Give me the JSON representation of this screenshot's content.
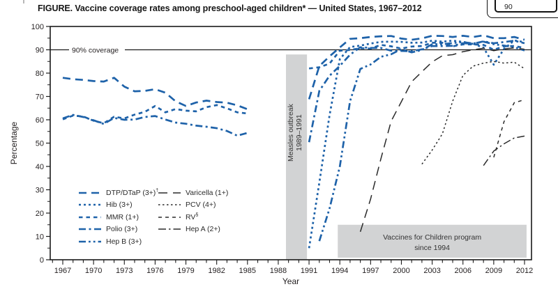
{
  "title": "FIGURE. Vaccine coverage rates among preschool-aged children* — United States, 1967–2012",
  "artifact_badge": {
    "value": "90"
  },
  "colors": {
    "blue": "#1e62a9",
    "black_line": "#2a2a2a",
    "band_gray": "#d2d3d4",
    "axis": "#1a1a1a",
    "text": "#231f20",
    "annotation_text": "#333333"
  },
  "chart_data": {
    "type": "line",
    "title": "Vaccine coverage rates among preschool-aged children — United States, 1967–2012",
    "xlabel": "Year",
    "ylabel": "Percentage",
    "xlim": [
      1966,
      2013
    ],
    "ylim": [
      0,
      100
    ],
    "grid": false,
    "legend_position": "inside-lower-left",
    "x_tick_labels": [
      1967,
      1970,
      1973,
      1976,
      1979,
      1982,
      1985,
      1988,
      1991,
      1994,
      1997,
      2000,
      2003,
      2006,
      2009,
      2012
    ],
    "x_minor_tick_years": [
      1966,
      2012,
      1
    ],
    "y_tick_labels": [
      0,
      10,
      20,
      30,
      40,
      50,
      60,
      70,
      80,
      90,
      100
    ],
    "y_minor_tick_step": 5,
    "reference_line": {
      "y": 90,
      "label": "90% coverage"
    },
    "annotations": [
      {
        "id": "measles-band",
        "type": "vertical-band",
        "label_lines": [
          "Measles outbreak",
          "1989–1991"
        ],
        "x_from": 1988.75,
        "x_to": 1990.8,
        "y_from": 0,
        "y_to": 88
      },
      {
        "id": "vfc-box",
        "type": "box",
        "label_lines": [
          "Vaccines for Children program",
          "since 1994"
        ],
        "x_from": 1993.8,
        "x_to": 2012.2,
        "y_from": 0.9,
        "y_to": 15
      }
    ],
    "series": [
      {
        "id": "dtp",
        "label": "DTP/DTaP (3+)",
        "sup": "†",
        "color_key": "blue",
        "dash": "11 7",
        "width": 2.7,
        "legend_col": 1,
        "segments": [
          [
            [
              1967,
              78
            ],
            [
              1968,
              77.4
            ],
            [
              1969,
              77.1
            ],
            [
              1970,
              76.6
            ],
            [
              1971,
              76.4
            ],
            [
              1972,
              78
            ],
            [
              1973,
              74.2
            ],
            [
              1974,
              72.2
            ],
            [
              1975,
              72.4
            ],
            [
              1976,
              73.1
            ],
            [
              1977,
              71.6
            ],
            [
              1978,
              67.9
            ],
            [
              1979,
              65.9
            ],
            [
              1980,
              67.4
            ],
            [
              1981,
              68.2
            ],
            [
              1982,
              67.6
            ],
            [
              1983,
              67.3
            ],
            [
              1984,
              66.2
            ],
            [
              1985,
              64.5
            ]
          ],
          [
            [
              1991,
              68.8
            ],
            [
              1992,
              83
            ],
            [
              1993,
              87.2
            ],
            [
              1994,
              91
            ],
            [
              1995,
              94.7
            ],
            [
              1996,
              95
            ],
            [
              1997,
              95.5
            ],
            [
              1998,
              95.8
            ],
            [
              1999,
              95.9
            ],
            [
              2000,
              94.8
            ],
            [
              2001,
              94.3
            ],
            [
              2002,
              94.9
            ],
            [
              2003,
              96
            ],
            [
              2004,
              95.9
            ],
            [
              2005,
              95.5
            ],
            [
              2006,
              96
            ],
            [
              2007,
              95.5
            ],
            [
              2008,
              96.2
            ],
            [
              2009,
              95
            ],
            [
              2010,
              95
            ],
            [
              2011,
              95.5
            ],
            [
              2012,
              94.3
            ]
          ]
        ]
      },
      {
        "id": "hib",
        "label": "Hib (3+)",
        "sup": "",
        "color_key": "blue",
        "dash": "3 4",
        "width": 2.7,
        "legend_col": 1,
        "segments": [
          [
            [
              1991,
              5
            ],
            [
              1992,
              33
            ],
            [
              1993,
              62
            ],
            [
              1994,
              86
            ],
            [
              1995,
              91.2
            ],
            [
              1996,
              91.8
            ],
            [
              1997,
              92.7
            ],
            [
              1998,
              93.4
            ],
            [
              1999,
              93.5
            ],
            [
              2000,
              93.4
            ],
            [
              2001,
              93
            ],
            [
              2002,
              93.1
            ],
            [
              2003,
              93.9
            ],
            [
              2004,
              93.5
            ],
            [
              2005,
              93.9
            ],
            [
              2006,
              93.4
            ],
            [
              2007,
              92.6
            ],
            [
              2008,
              90.9
            ],
            [
              2009,
              83.6
            ],
            [
              2010,
              90.4
            ],
            [
              2011,
              94
            ],
            [
              2012,
              93.3
            ]
          ]
        ]
      },
      {
        "id": "mmr",
        "label": "MMR (1+)",
        "sup": "",
        "color_key": "blue",
        "dash": "5.5 5",
        "width": 2.7,
        "legend_col": 1,
        "segments": [
          [
            [
              1967,
              60.2
            ],
            [
              1968,
              61.8
            ],
            [
              1969,
              61.4
            ],
            [
              1970,
              59.6
            ],
            [
              1971,
              58.5
            ],
            [
              1972,
              61.3
            ],
            [
              1973,
              60.6
            ],
            [
              1974,
              62.2
            ],
            [
              1975,
              63.4
            ],
            [
              1976,
              65.9
            ],
            [
              1977,
              63.2
            ],
            [
              1978,
              64.6
            ],
            [
              1979,
              63.9
            ],
            [
              1980,
              63.6
            ],
            [
              1981,
              65.4
            ],
            [
              1982,
              66.3
            ],
            [
              1983,
              64.9
            ],
            [
              1984,
              63.2
            ],
            [
              1985,
              62.7
            ]
          ],
          [
            [
              1991,
              82
            ],
            [
              1992,
              82.5
            ],
            [
              1993,
              84.1
            ],
            [
              1994,
              89.6
            ],
            [
              1995,
              89.9
            ],
            [
              1996,
              90.7
            ],
            [
              1997,
              90.5
            ],
            [
              1998,
              92.1
            ],
            [
              1999,
              91.5
            ],
            [
              2000,
              90.5
            ],
            [
              2001,
              91.4
            ],
            [
              2002,
              91.6
            ],
            [
              2003,
              93
            ],
            [
              2004,
              93
            ],
            [
              2005,
              91.5
            ],
            [
              2006,
              92.3
            ],
            [
              2007,
              92.3
            ],
            [
              2008,
              92.1
            ],
            [
              2009,
              90
            ],
            [
              2010,
              91.5
            ],
            [
              2011,
              91.6
            ],
            [
              2012,
              90.8
            ]
          ]
        ]
      },
      {
        "id": "polio",
        "label": "Polio (3+)",
        "sup": "",
        "color_key": "blue",
        "dash": "10 4.5 3 4.5",
        "width": 2.7,
        "legend_col": 1,
        "segments": [
          [
            [
              1967,
              60.6
            ],
            [
              1968,
              62.1
            ],
            [
              1969,
              61.2
            ],
            [
              1970,
              59.8
            ],
            [
              1971,
              58.2
            ],
            [
              1972,
              60.8
            ],
            [
              1973,
              60
            ],
            [
              1974,
              60.1
            ],
            [
              1975,
              61.2
            ],
            [
              1976,
              61.6
            ],
            [
              1977,
              60.1
            ],
            [
              1978,
              58.8
            ],
            [
              1979,
              58.3
            ],
            [
              1980,
              57.5
            ],
            [
              1981,
              57
            ],
            [
              1982,
              56.4
            ],
            [
              1983,
              55.2
            ],
            [
              1984,
              53.2
            ],
            [
              1985,
              54.4
            ]
          ],
          [
            [
              1991,
              50.4
            ],
            [
              1992,
              72.4
            ],
            [
              1993,
              78.9
            ],
            [
              1994,
              83.1
            ],
            [
              1995,
              87.9
            ],
            [
              1996,
              91.1
            ],
            [
              1997,
              90.8
            ],
            [
              1998,
              90.8
            ],
            [
              1999,
              89.6
            ],
            [
              2000,
              89.5
            ],
            [
              2001,
              89.4
            ],
            [
              2002,
              90.2
            ],
            [
              2003,
              91.6
            ],
            [
              2004,
              91.6
            ],
            [
              2005,
              91.7
            ],
            [
              2006,
              92.8
            ],
            [
              2007,
              92.6
            ],
            [
              2008,
              93.6
            ],
            [
              2009,
              92.8
            ],
            [
              2010,
              93.3
            ],
            [
              2011,
              93.9
            ],
            [
              2012,
              92.8
            ]
          ]
        ]
      },
      {
        "id": "hepb",
        "label": "Hep B (3+)",
        "sup": "",
        "color_key": "blue",
        "dash": "10 4 2.8 4 2.8 4",
        "width": 2.7,
        "legend_col": 1,
        "segments": [
          [
            [
              1992,
              8
            ],
            [
              1993,
              22
            ],
            [
              1994,
              40
            ],
            [
              1995,
              68
            ],
            [
              1996,
              81.8
            ],
            [
              1997,
              83.7
            ],
            [
              1998,
              87
            ],
            [
              1999,
              88.1
            ],
            [
              2000,
              90.3
            ],
            [
              2001,
              88.9
            ],
            [
              2002,
              89.9
            ],
            [
              2003,
              92.4
            ],
            [
              2004,
              92.4
            ],
            [
              2005,
              92.9
            ],
            [
              2006,
              93.3
            ],
            [
              2007,
              92.7
            ],
            [
              2008,
              93.5
            ],
            [
              2009,
              92.4
            ],
            [
              2010,
              91.8
            ],
            [
              2011,
              91.1
            ],
            [
              2012,
              89.7
            ]
          ]
        ]
      },
      {
        "id": "varicella",
        "label": "Varicella (1+)",
        "sup": "",
        "color_key": "black_line",
        "dash": "13 8",
        "width": 1.5,
        "legend_col": 2,
        "segments": [
          [
            [
              1996,
              12
            ],
            [
              1997,
              26
            ],
            [
              1998,
              43.2
            ],
            [
              1999,
              59.4
            ],
            [
              2000,
              67.8
            ],
            [
              2001,
              76.3
            ],
            [
              2002,
              80.6
            ],
            [
              2003,
              84.8
            ],
            [
              2004,
              87.5
            ],
            [
              2005,
              87.9
            ],
            [
              2006,
              89.2
            ],
            [
              2007,
              90
            ],
            [
              2008,
              90.7
            ],
            [
              2009,
              89.6
            ],
            [
              2010,
              90.4
            ],
            [
              2011,
              90.8
            ],
            [
              2012,
              90.2
            ]
          ]
        ]
      },
      {
        "id": "pcv",
        "label": "PCV (4+)",
        "sup": "",
        "color_key": "black_line",
        "dash": "2.5 3.5",
        "width": 1.5,
        "legend_col": 2,
        "segments": [
          [
            [
              2002,
              41
            ],
            [
              2003,
              47
            ],
            [
              2004,
              54
            ],
            [
              2005,
              68
            ],
            [
              2006,
              79
            ],
            [
              2007,
              83
            ],
            [
              2008,
              84.3
            ],
            [
              2009,
              85
            ],
            [
              2010,
              84.3
            ],
            [
              2011,
              84.7
            ],
            [
              2012,
              81.9
            ]
          ]
        ]
      },
      {
        "id": "rv",
        "label": "RV",
        "sup": "§",
        "color_key": "black_line",
        "dash": "5 5",
        "width": 1.5,
        "legend_col": 2,
        "segments": [
          [
            [
              2009,
              43.9
            ],
            [
              2010,
              59.2
            ],
            [
              2011,
              67.3
            ],
            [
              2012,
              68.6
            ]
          ]
        ]
      },
      {
        "id": "hepa",
        "label": "Hep A (2+)",
        "sup": "",
        "color_key": "black_line",
        "dash": "11 4 2.5 4",
        "width": 1.5,
        "legend_col": 2,
        "segments": [
          [
            [
              2008,
              40.4
            ],
            [
              2009,
              46.6
            ],
            [
              2010,
              49.7
            ],
            [
              2011,
              52.2
            ],
            [
              2012,
              53
            ]
          ]
        ]
      }
    ]
  }
}
